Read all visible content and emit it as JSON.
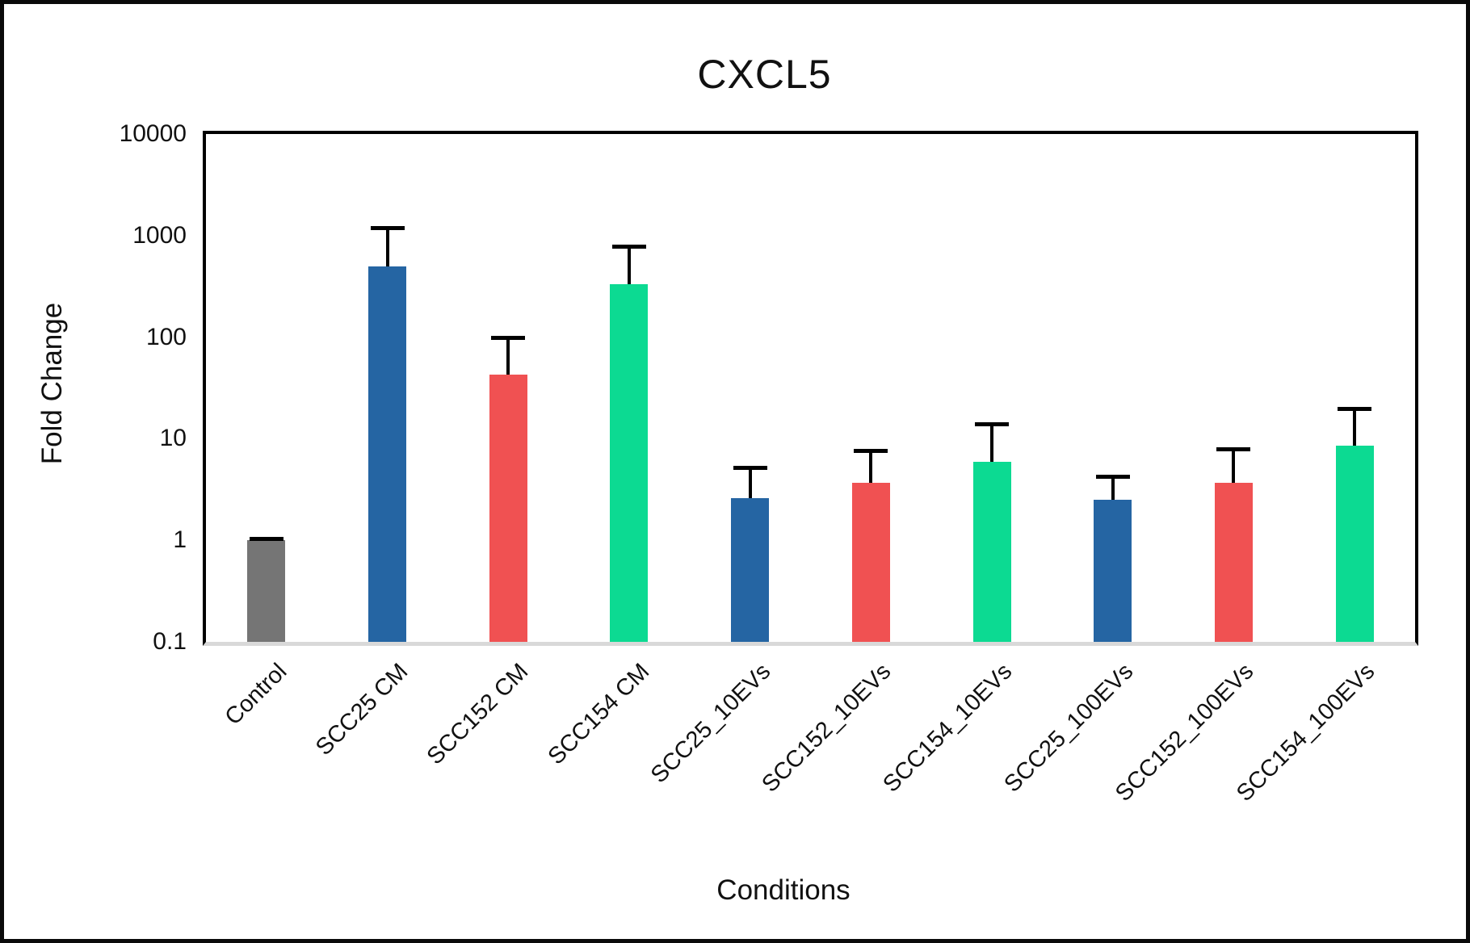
{
  "figure": {
    "title": "CXCL5",
    "y_axis_title": "Fold Change",
    "x_axis_title": "Conditions"
  },
  "chart_data": {
    "type": "bar",
    "title": "CXCL5",
    "xlabel": "Conditions",
    "ylabel": "Fold Change",
    "y_scale": "log10",
    "ylim": [
      0.1,
      10000
    ],
    "yticks": [
      10000,
      1000,
      100,
      10,
      1,
      0.1
    ],
    "ytick_labels": [
      "10000",
      "1000",
      "100",
      "10",
      "1",
      "0.1"
    ],
    "grid": false,
    "legend": false,
    "categories": [
      "Control",
      "SCC25 CM",
      "SCC152 CM",
      "SCC154 CM",
      "SCC25_10EVs",
      "SCC152_10EVs",
      "SCC154_10EVs",
      "SCC25_100EVs",
      "SCC152_100EVs",
      "SCC154_100EVs"
    ],
    "values": [
      1.0,
      500,
      43,
      330,
      2.6,
      3.7,
      5.9,
      2.5,
      3.7,
      8.5
    ],
    "error_bar_top_values": [
      1.05,
      1200,
      100,
      780,
      5.2,
      7.6,
      14,
      4.3,
      8.0,
      20
    ],
    "bar_colors": [
      "#757575",
      "#2565A3",
      "#F05152",
      "#0CDA92",
      "#2565A3",
      "#F05152",
      "#0CDA92",
      "#2565A3",
      "#F05152",
      "#0CDA92"
    ],
    "error_bar_color": "#000000",
    "axis_line_color": "#000000",
    "baseline_color": "#D9D9D9",
    "background_color": "#FFFFFF"
  }
}
